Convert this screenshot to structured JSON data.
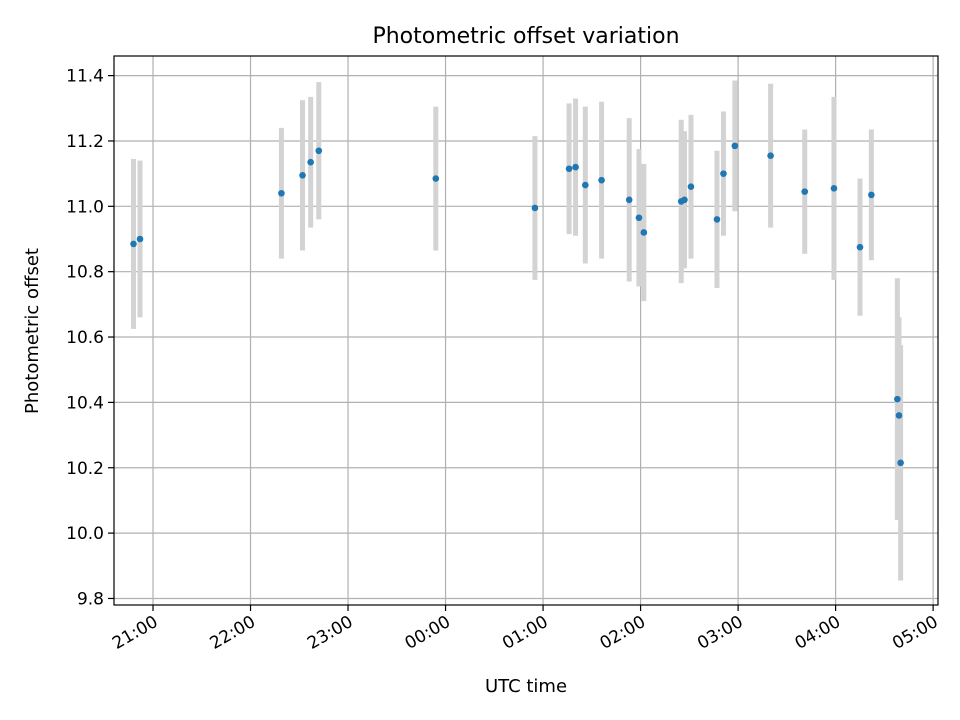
{
  "chart_data": {
    "type": "scatter",
    "title": "Photometric offset variation",
    "xlabel": "UTC time",
    "ylabel": "Photometric offset",
    "x_ticks": [
      "21:00",
      "22:00",
      "23:00",
      "00:00",
      "01:00",
      "02:00",
      "03:00",
      "04:00",
      "05:00"
    ],
    "y_ticks": [
      "9.8",
      "10.0",
      "10.2",
      "10.4",
      "10.6",
      "10.8",
      "11.0",
      "11.2",
      "11.4"
    ],
    "ylim": [
      9.78,
      11.46
    ],
    "xlim": [
      "20:36",
      "05:03"
    ],
    "grid": true,
    "colors": {
      "point": "#1f77b4",
      "errorbar": "#d3d3d3"
    },
    "points": [
      {
        "x": "20:48",
        "y": 10.885,
        "err": 0.26
      },
      {
        "x": "20:52",
        "y": 10.9,
        "err": 0.24
      },
      {
        "x": "22:19",
        "y": 11.04,
        "err": 0.2
      },
      {
        "x": "22:32",
        "y": 11.095,
        "err": 0.23
      },
      {
        "x": "22:37",
        "y": 11.135,
        "err": 0.2
      },
      {
        "x": "22:42",
        "y": 11.17,
        "err": 0.21
      },
      {
        "x": "23:54",
        "y": 11.085,
        "err": 0.22
      },
      {
        "x": "00:55",
        "y": 10.995,
        "err": 0.22
      },
      {
        "x": "01:16",
        "y": 11.115,
        "err": 0.2
      },
      {
        "x": "01:20",
        "y": 11.12,
        "err": 0.21
      },
      {
        "x": "01:26",
        "y": 11.065,
        "err": 0.24
      },
      {
        "x": "01:36",
        "y": 11.08,
        "err": 0.24
      },
      {
        "x": "01:53",
        "y": 11.02,
        "err": 0.25
      },
      {
        "x": "01:59",
        "y": 10.965,
        "err": 0.21
      },
      {
        "x": "02:02",
        "y": 10.92,
        "err": 0.21
      },
      {
        "x": "02:25",
        "y": 11.015,
        "err": 0.25
      },
      {
        "x": "02:27",
        "y": 11.02,
        "err": 0.21
      },
      {
        "x": "02:31",
        "y": 11.06,
        "err": 0.22
      },
      {
        "x": "02:47",
        "y": 10.96,
        "err": 0.21
      },
      {
        "x": "02:51",
        "y": 11.1,
        "err": 0.19
      },
      {
        "x": "02:58",
        "y": 11.185,
        "err": 0.2
      },
      {
        "x": "03:20",
        "y": 11.155,
        "err": 0.22
      },
      {
        "x": "03:41",
        "y": 11.045,
        "err": 0.19
      },
      {
        "x": "03:59",
        "y": 11.055,
        "err": 0.28
      },
      {
        "x": "04:15",
        "y": 10.875,
        "err": 0.21
      },
      {
        "x": "04:22",
        "y": 11.035,
        "err": 0.2
      },
      {
        "x": "04:38",
        "y": 10.41,
        "err": 0.37
      },
      {
        "x": "04:39",
        "y": 10.36,
        "err": 0.3
      },
      {
        "x": "04:40",
        "y": 10.215,
        "err": 0.36
      }
    ]
  }
}
